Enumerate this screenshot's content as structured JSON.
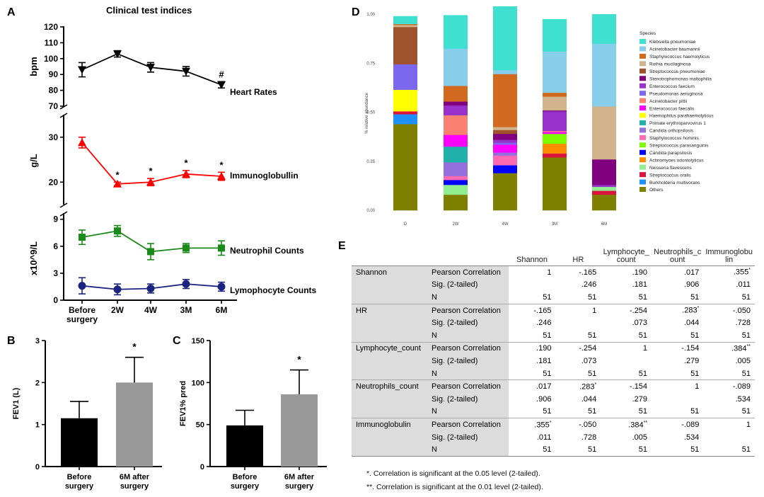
{
  "panels": {
    "a": "A",
    "b": "B",
    "c": "C",
    "d": "D",
    "e": "E"
  },
  "panel_a": {
    "title": "Clinical test indices",
    "categories": [
      "Before\nsurgery",
      "2W",
      "4W",
      "3M",
      "6M"
    ],
    "hr": {
      "label": "Heart Rates",
      "ylabel": "bpm",
      "ylim": [
        70,
        120
      ],
      "ticks": [
        70,
        80,
        90,
        100,
        110,
        120
      ],
      "values": [
        93,
        103,
        94.5,
        92,
        83.5
      ],
      "err": [
        4.5,
        2,
        3,
        3,
        2
      ],
      "color": "#000000",
      "marks": [
        "",
        "",
        "",
        "",
        "#"
      ]
    },
    "ig": {
      "label": "Immunoglobullin",
      "ylabel": "g/L",
      "ylim": [
        15,
        35
      ],
      "ticks": [
        20,
        30
      ],
      "values": [
        28.8,
        19.6,
        20,
        21.8,
        21.3
      ],
      "err": [
        1.2,
        0.4,
        0.8,
        0.8,
        0.9
      ],
      "color": "#ff0000",
      "marks": [
        "",
        "*",
        "*",
        "*",
        "*"
      ]
    },
    "neut": {
      "label": "Neutrophil Counts",
      "ylabel": "x10^9/L",
      "ylim": [
        0,
        10
      ],
      "ticks": [
        0,
        3,
        6,
        9
      ],
      "values": [
        7,
        7.7,
        5.4,
        5.8,
        5.8
      ],
      "err": [
        0.8,
        0.6,
        0.9,
        0.5,
        0.8
      ],
      "color": "#1a8a1a"
    },
    "lym": {
      "label": "Lymophocyte Counts",
      "values": [
        1.6,
        1.2,
        1.3,
        1.8,
        1.5
      ],
      "err": [
        0.9,
        0.6,
        0.5,
        0.5,
        0.5
      ],
      "color": "#1a237e"
    }
  },
  "panel_b": {
    "ylabel": "FEV1 (L)",
    "ylim": [
      0,
      3
    ],
    "ticks": [
      0,
      1,
      2,
      3
    ],
    "categories": [
      "Before\nsurgery",
      "6M after\nsurgery"
    ],
    "values": [
      1.15,
      2.0
    ],
    "err": [
      0.4,
      0.6
    ],
    "colors": [
      "#000000",
      "#999999"
    ],
    "mark": "*"
  },
  "panel_c": {
    "ylabel": "FEV1% pred",
    "ylim": [
      0,
      150
    ],
    "ticks": [
      0,
      50,
      100,
      150
    ],
    "categories": [
      "Before\nsurgery",
      "6M after\nsurgery"
    ],
    "values": [
      49,
      86
    ],
    "err": [
      18,
      29
    ],
    "colors": [
      "#000000",
      "#999999"
    ],
    "mark": "*"
  },
  "chart_data": {
    "type": "bar",
    "stacked": true,
    "ylabel": "% relative abundance",
    "ylim": [
      0,
      1
    ],
    "ticks": [
      "0.00",
      "0.25",
      "0.50",
      "0.75",
      "1.00"
    ],
    "categories": [
      "D",
      "2W",
      "4W",
      "3M",
      "6M"
    ],
    "legend_title": "Species",
    "series": [
      {
        "name": "Others",
        "color": "#808000",
        "values": [
          0.44,
          0.08,
          0.19,
          0.27,
          0.08
        ]
      },
      {
        "name": "Burkholderia multivorans",
        "color": "#1e90ff",
        "values": [
          0.05,
          0,
          0,
          0,
          0
        ]
      },
      {
        "name": "Streptococcus oralis",
        "color": "#dc143c",
        "values": [
          0.015,
          0,
          0,
          0.02,
          0.02
        ]
      },
      {
        "name": "Neisseria flavescens",
        "color": "#90ee90",
        "values": [
          0,
          0.05,
          0,
          0,
          0.02
        ]
      },
      {
        "name": "Actinomyces odontolyticus",
        "color": "#ff8c00",
        "values": [
          0,
          0,
          0,
          0.05,
          0
        ]
      },
      {
        "name": "Candida parapsilosis",
        "color": "#0000ff",
        "values": [
          0,
          0.025,
          0.04,
          0,
          0
        ]
      },
      {
        "name": "Streptococcus parasanguinis",
        "color": "#7cfc00",
        "values": [
          0,
          0,
          0,
          0.05,
          0
        ]
      },
      {
        "name": "Staphylococcus hominis",
        "color": "#ff69b4",
        "values": [
          0,
          0.02,
          0.05,
          0,
          0
        ]
      },
      {
        "name": "Candida orthopsilosis",
        "color": "#9370db",
        "values": [
          0,
          0.07,
          0.015,
          0,
          0
        ]
      },
      {
        "name": "Primate erythroparvovirus 1",
        "color": "#20b2aa",
        "values": [
          0,
          0.08,
          0,
          0,
          0
        ]
      },
      {
        "name": "Haemophilus parahaemolyticus",
        "color": "#ffff00",
        "values": [
          0.11,
          0,
          0,
          0,
          0
        ]
      },
      {
        "name": "Enterococcus faecalis",
        "color": "#ff00ff",
        "values": [
          0,
          0.06,
          0.04,
          0.01,
          0
        ]
      },
      {
        "name": "Acinetobacter pittii",
        "color": "#fa8072",
        "values": [
          0,
          0.1,
          0,
          0.005,
          0
        ]
      },
      {
        "name": "Pseudomonas aeruginosa",
        "color": "#7b68ee",
        "values": [
          0.13,
          0,
          0.01,
          0,
          0
        ]
      },
      {
        "name": "Enterococcus faecium",
        "color": "#9932cc",
        "values": [
          0,
          0.05,
          0.015,
          0.1,
          0.01
        ]
      },
      {
        "name": "Stenotrophomonas maltophilia",
        "color": "#800080",
        "values": [
          0,
          0.02,
          0.03,
          0.005,
          0.13
        ]
      },
      {
        "name": "Streptococcus pneumoniae",
        "color": "#a0522d",
        "values": [
          0.19,
          0,
          0.02,
          0,
          0
        ]
      },
      {
        "name": "Rothia mucilaginosa",
        "color": "#d2b48c",
        "values": [
          0.01,
          0,
          0.015,
          0.07,
          0.27
        ]
      },
      {
        "name": "Staphylococcus haemolyticus",
        "color": "#d2691e",
        "values": [
          0.005,
          0.08,
          0.27,
          0.02,
          0
        ]
      },
      {
        "name": "Acinetobacter baumannii",
        "color": "#87ceeb",
        "values": [
          0,
          0.19,
          0.02,
          0.21,
          0.32
        ]
      },
      {
        "name": "Klebsiella pneumoniae",
        "color": "#40e0d0",
        "values": [
          0.04,
          0.17,
          0.325,
          0.165,
          0.15
        ]
      }
    ]
  },
  "panel_e": {
    "headers": [
      "Shannon",
      "HR",
      "Lymphocyte_\ncount",
      "Neutrophils_c\nount",
      "Immunoglobu\nlin"
    ],
    "stat_labels": [
      "Pearson Correlation",
      "Sig. (2-tailed)",
      "N"
    ],
    "rows": [
      {
        "var": "Shannon",
        "r": [
          "1",
          "-.165",
          ".190",
          ".017",
          ".355*"
        ],
        "sig": [
          "",
          ".246",
          ".181",
          ".906",
          ".011"
        ],
        "n": [
          "51",
          "51",
          "51",
          "51",
          "51"
        ]
      },
      {
        "var": "HR",
        "r": [
          "-.165",
          "1",
          "-.254",
          ".283*",
          "-.050"
        ],
        "sig": [
          ".246",
          "",
          ".073",
          ".044",
          ".728"
        ],
        "n": [
          "51",
          "51",
          "51",
          "51",
          "51"
        ]
      },
      {
        "var": "Lymphocyte_count",
        "r": [
          ".190",
          "-.254",
          "1",
          "-.154",
          ".384**"
        ],
        "sig": [
          ".181",
          ".073",
          "",
          ".279",
          ".005"
        ],
        "n": [
          "51",
          "51",
          "51",
          "51",
          "51"
        ]
      },
      {
        "var": "Neutrophils_count",
        "r": [
          ".017",
          ".283*",
          "-.154",
          "1",
          "-.089"
        ],
        "sig": [
          ".906",
          ".044",
          ".279",
          "",
          ".534"
        ],
        "n": [
          "51",
          "51",
          "51",
          "51",
          "51"
        ]
      },
      {
        "var": "Immunoglobulin",
        "r": [
          ".355*",
          "-.050",
          ".384**",
          "-.089",
          "1"
        ],
        "sig": [
          ".011",
          ".728",
          ".005",
          ".534",
          ""
        ],
        "n": [
          "51",
          "51",
          "51",
          "51",
          "51"
        ]
      }
    ],
    "notes": [
      "*. Correlation is significant at the 0.05 level (2-tailed).",
      "**. Correlation is significant at the 0.01 level (2-tailed)."
    ]
  }
}
